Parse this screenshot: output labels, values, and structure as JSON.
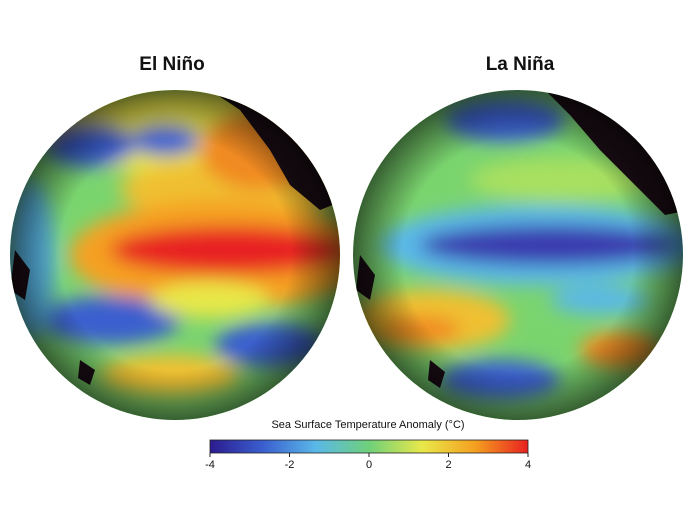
{
  "panels": [
    {
      "title": "El Niño"
    },
    {
      "title": "La Niña"
    }
  ],
  "colorbar": {
    "title": "Sea Surface Temperature Anomaly (°C)",
    "lim": [
      -4,
      4
    ],
    "ticks": [
      -4,
      -2,
      0,
      2,
      4
    ],
    "colors": [
      "#2b1b8f",
      "#3a5fcf",
      "#5ab8e8",
      "#6fd07a",
      "#e8e84a",
      "#f5a020",
      "#e82020"
    ]
  }
}
